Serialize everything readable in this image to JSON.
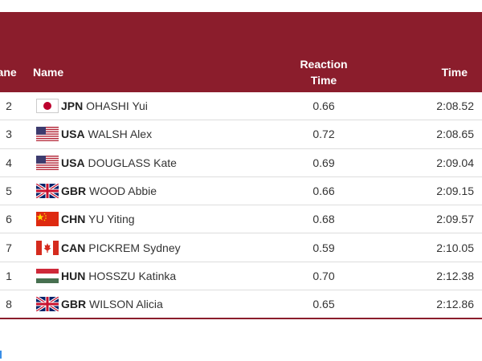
{
  "header": {
    "lane": "Lane",
    "name": "Name",
    "reaction_time": "Reaction Time",
    "time": "Time"
  },
  "table": {
    "rows": [
      [
        "2",
        "JPN",
        "OHASHI Yui",
        "0.66",
        "2:08.52"
      ],
      [
        "3",
        "USA",
        "WALSH Alex",
        "0.72",
        "2:08.65"
      ],
      [
        "4",
        "USA",
        "DOUGLASS Kate",
        "0.69",
        "2:09.04"
      ],
      [
        "5",
        "GBR",
        "WOOD Abbie",
        "0.66",
        "2:09.15"
      ],
      [
        "6",
        "CHN",
        "YU Yiting",
        "0.68",
        "2:09.57"
      ],
      [
        "7",
        "CAN",
        "PICKREM Sydney",
        "0.59",
        "2:10.05"
      ],
      [
        "1",
        "HUN",
        "HOSSZU Katinka",
        "0.70",
        "2:12.38"
      ],
      [
        "8",
        "GBR",
        "WILSON Alicia",
        "0.65",
        "2:12.86"
      ]
    ]
  }
}
